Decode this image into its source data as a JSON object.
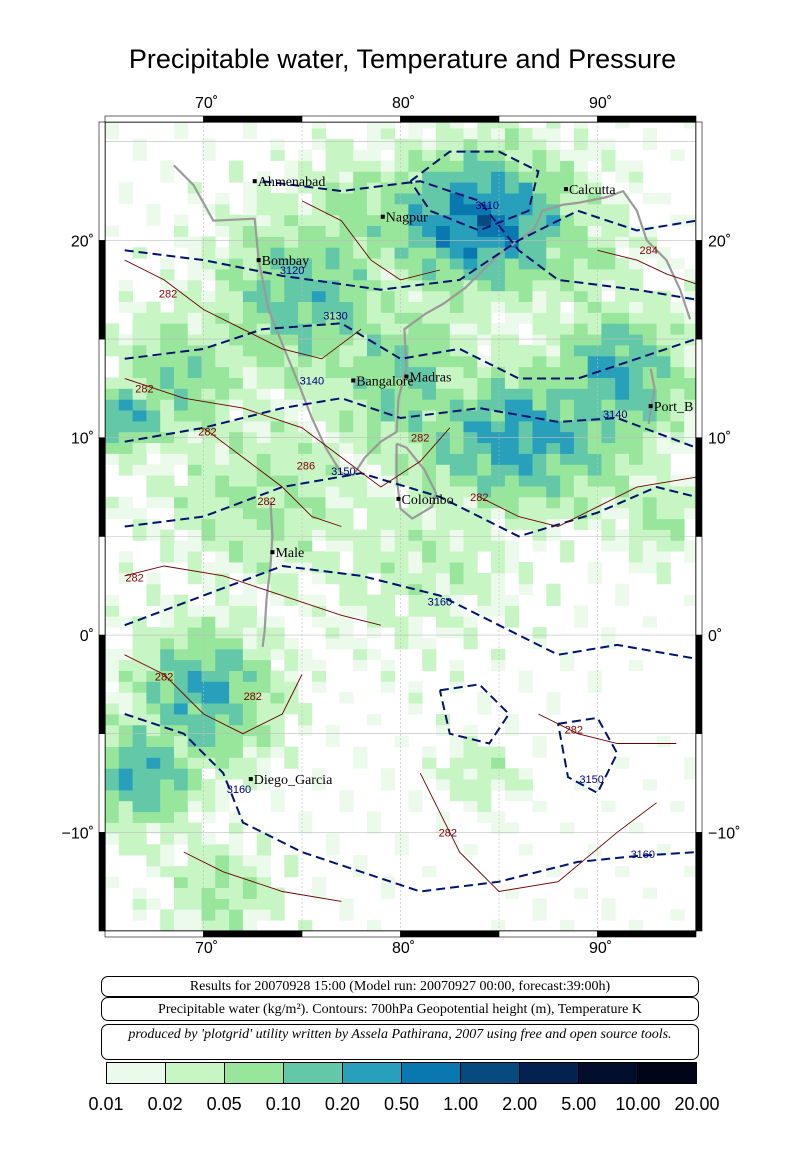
{
  "title": "Precipitable water, Temperature and Pressure",
  "map": {
    "lon_min": 65,
    "lon_max": 95,
    "lat_min": -15,
    "lat_max": 26,
    "lon_ticks": [
      {
        "value": 70,
        "label": "70˚"
      },
      {
        "value": 80,
        "label": "80˚"
      },
      {
        "value": 90,
        "label": "90˚"
      }
    ],
    "lat_ticks": [
      {
        "value": 20,
        "label": "20˚"
      },
      {
        "value": 10,
        "label": "10˚"
      },
      {
        "value": 0,
        "label": "0˚"
      },
      {
        "value": -10,
        "label": "−10˚"
      }
    ],
    "cities": [
      {
        "name": "Ahmenabad",
        "lon": 72.6,
        "lat": 23.0
      },
      {
        "name": "Calcutta",
        "lon": 88.4,
        "lat": 22.6
      },
      {
        "name": "Nagpur",
        "lon": 79.1,
        "lat": 21.2
      },
      {
        "name": "Bombay",
        "lon": 72.8,
        "lat": 19.0
      },
      {
        "name": "Bangalore",
        "lon": 77.6,
        "lat": 12.9
      },
      {
        "name": "Madras",
        "lon": 80.3,
        "lat": 13.1
      },
      {
        "name": "Port_B",
        "lon": 92.7,
        "lat": 11.6
      },
      {
        "name": "Colombo",
        "lon": 79.9,
        "lat": 6.9
      },
      {
        "name": "Male",
        "lon": 73.5,
        "lat": 4.2
      },
      {
        "name": "Diego_Garcia",
        "lon": 72.4,
        "lat": -7.3
      }
    ],
    "height_contour_labels": [
      {
        "text": "3110",
        "lon": 84.4,
        "lat": 21.6
      },
      {
        "text": "3120",
        "lon": 74.5,
        "lat": 18.3
      },
      {
        "text": "3130",
        "lon": 76.7,
        "lat": 16.0
      },
      {
        "text": "3140",
        "lon": 75.5,
        "lat": 12.7
      },
      {
        "text": "3140",
        "lon": 90.9,
        "lat": 11.0
      },
      {
        "text": "3150",
        "lon": 77.1,
        "lat": 8.1
      },
      {
        "text": "3160",
        "lon": 82.0,
        "lat": 1.5
      },
      {
        "text": "3160",
        "lon": 71.8,
        "lat": -8.0
      },
      {
        "text": "3150",
        "lon": 89.7,
        "lat": -7.5
      },
      {
        "text": "3160",
        "lon": 92.3,
        "lat": -11.3
      }
    ],
    "temp_contour_labels": [
      {
        "text": "284",
        "lon": 92.6,
        "lat": 19.3
      },
      {
        "text": "282",
        "lon": 68.2,
        "lat": 17.1
      },
      {
        "text": "282",
        "lon": 67.0,
        "lat": 12.3
      },
      {
        "text": "282",
        "lon": 70.2,
        "lat": 10.1
      },
      {
        "text": "282",
        "lon": 81.0,
        "lat": 9.8
      },
      {
        "text": "286",
        "lon": 75.2,
        "lat": 8.4
      },
      {
        "text": "282",
        "lon": 73.2,
        "lat": 6.6
      },
      {
        "text": "282",
        "lon": 84.0,
        "lat": 6.8
      },
      {
        "text": "282",
        "lon": 66.5,
        "lat": 2.7
      },
      {
        "text": "282",
        "lon": 68.0,
        "lat": -2.3
      },
      {
        "text": "282",
        "lon": 72.5,
        "lat": -3.3
      },
      {
        "text": "282",
        "lon": 88.8,
        "lat": -5.0
      },
      {
        "text": "282",
        "lon": 82.4,
        "lat": -10.2
      }
    ]
  },
  "info": {
    "results_line": "Results for 20070928 15:00 (Model run: 20070927 00:00, forecast:39:00h)",
    "variable_line": "Precipitable water (kg/m²).  Contours: 700hPa Geopotential height (m), Temperature K",
    "credit_line": "produced by 'plotgrid' utility written by Assela Pathirana, 2007 using free and open source tools."
  },
  "colorbar": {
    "labels": [
      "0.01",
      "0.02",
      "0.05",
      "0.10",
      "0.20",
      "0.50",
      "1.00",
      "2.00",
      "5.00",
      "10.00",
      "20.00"
    ],
    "colors": [
      "#ebfaeb",
      "#c8f5c4",
      "#98e69c",
      "#62c8a8",
      "#289fbb",
      "#0a78b0",
      "#064a80",
      "#04224f",
      "#020e2c",
      "#010519"
    ]
  }
}
